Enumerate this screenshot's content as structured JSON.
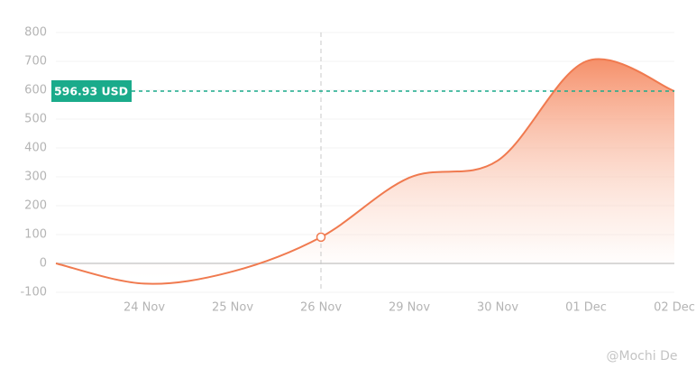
{
  "chart_data": {
    "type": "line",
    "categories": [
      null,
      "24 Nov",
      "25 Nov",
      "26 Nov",
      "29 Nov",
      "30 Nov",
      "01 Dec",
      "02 Dec"
    ],
    "series": [
      {
        "color": "#f07a4f",
        "values": [
          0,
          -70,
          -28,
          91,
          297,
          356,
          700,
          596.93
        ]
      }
    ],
    "ylim": [
      -100,
      800
    ],
    "yticks": [
      -100,
      0,
      100,
      200,
      300,
      400,
      500,
      600,
      700,
      800
    ],
    "grid": true,
    "reference_line": {
      "value": 596.93,
      "label": "596.93 USD",
      "color": "#1aab8b"
    },
    "highlight_index": 3,
    "watermark": "@Mochi De"
  }
}
